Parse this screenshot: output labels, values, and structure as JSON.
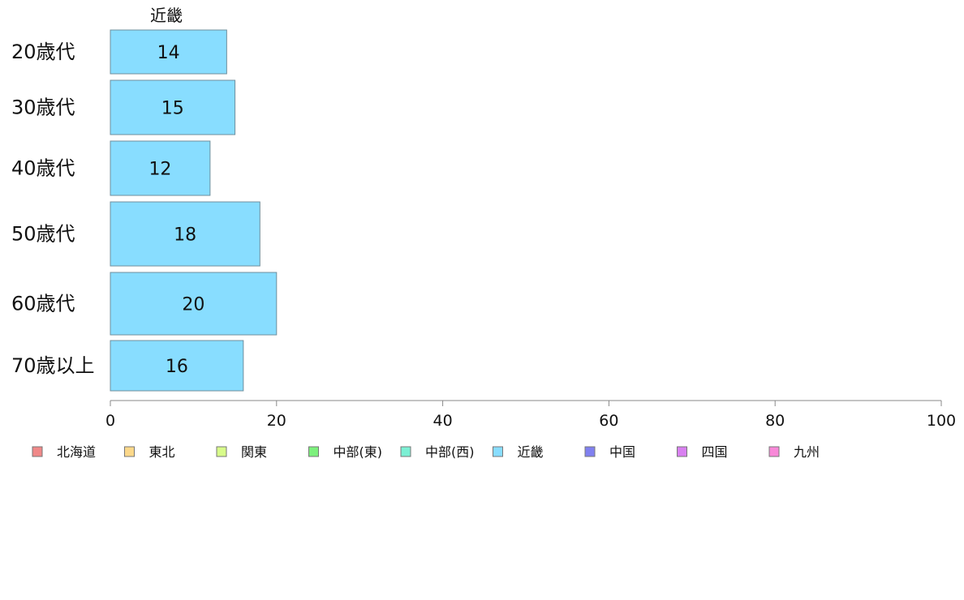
{
  "chart_data": {
    "type": "bar",
    "orientation": "horizontal",
    "title": "近畿",
    "categories": [
      "20歳代",
      "30歳代",
      "40歳代",
      "50歳代",
      "60歳代",
      "70歳以上"
    ],
    "series": [
      {
        "name": "近畿",
        "color": "#88ddff",
        "values": [
          14,
          15,
          12,
          18,
          20,
          16
        ]
      }
    ],
    "xlim": [
      0,
      100
    ],
    "x_ticks": [
      0,
      20,
      40,
      60,
      80,
      100
    ],
    "grid": false,
    "legend": {
      "placement": "bottom",
      "items": [
        {
          "label": "北海道",
          "color": "#f08888"
        },
        {
          "label": "東北",
          "color": "#fcd88a"
        },
        {
          "label": "関東",
          "color": "#d8fc8a"
        },
        {
          "label": "中部(東)",
          "color": "#7cf07c"
        },
        {
          "label": "中部(西)",
          "color": "#7cf0d4"
        },
        {
          "label": "近畿",
          "color": "#88ddff"
        },
        {
          "label": "中国",
          "color": "#8080f0"
        },
        {
          "label": "四国",
          "color": "#d880f0"
        },
        {
          "label": "九州",
          "color": "#f888d8"
        }
      ]
    }
  }
}
